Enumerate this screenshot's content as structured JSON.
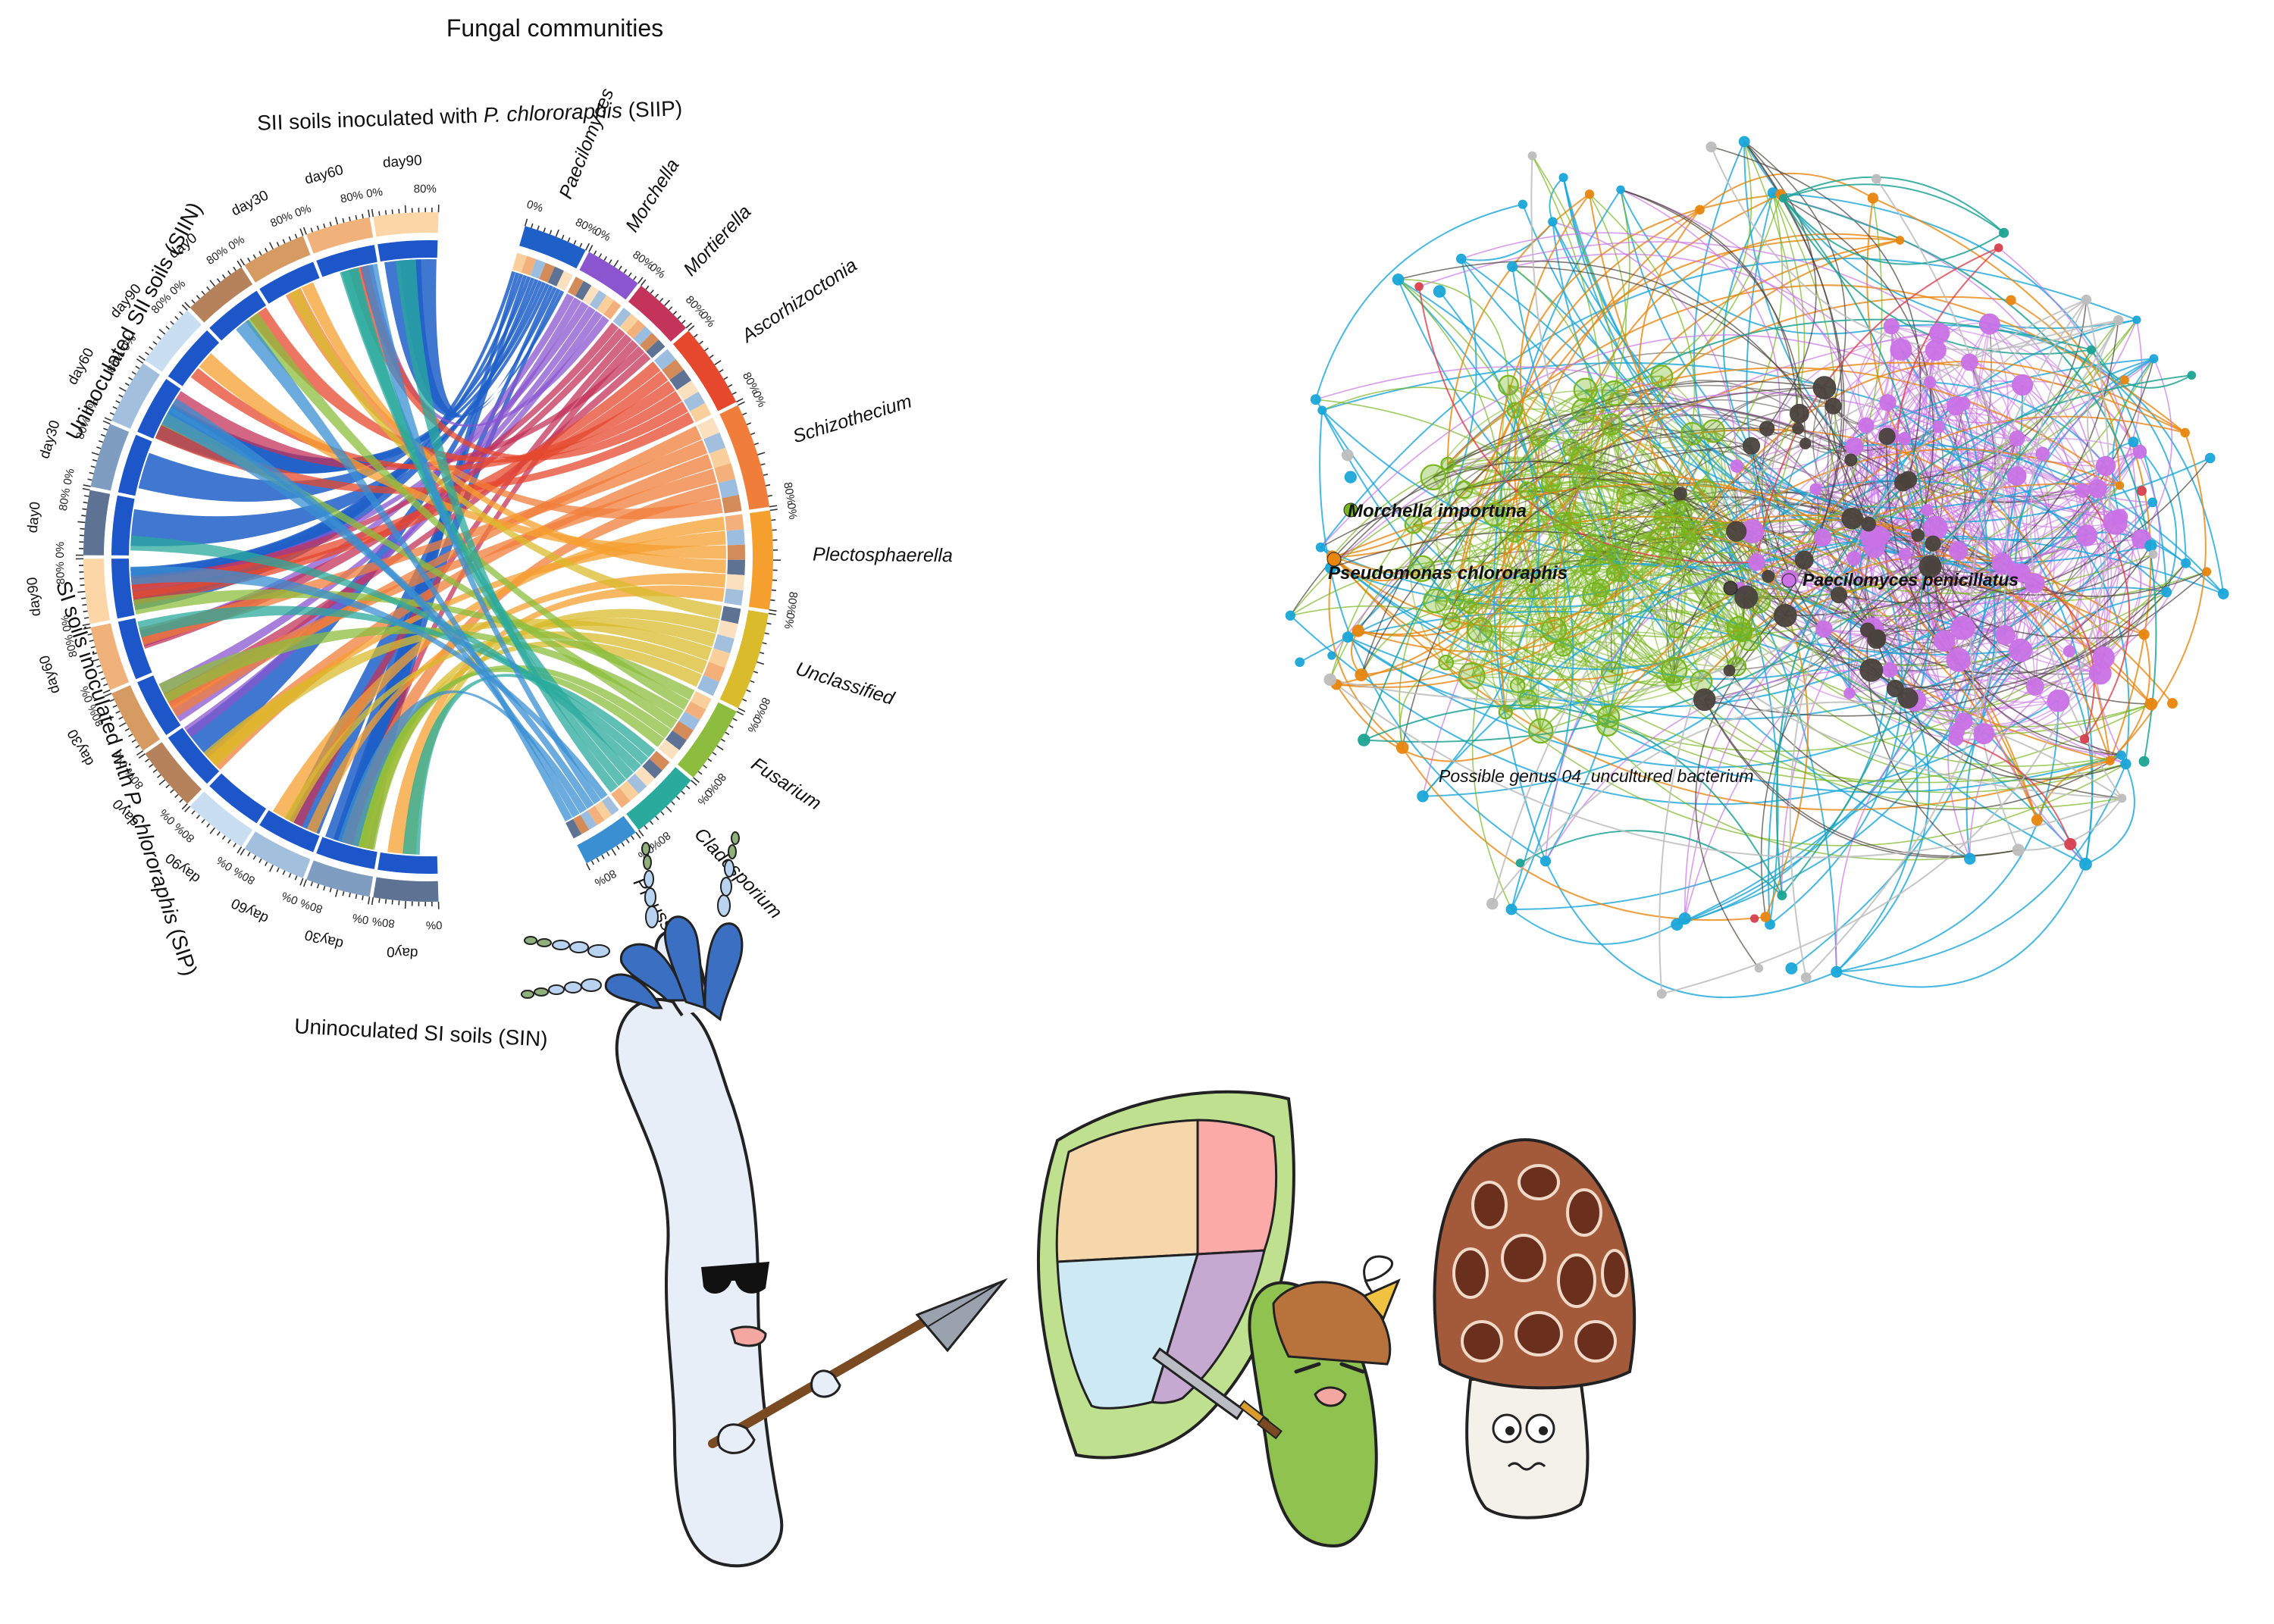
{
  "chord": {
    "title": "Fungal communities",
    "groups": [
      {
        "id": "siip",
        "label_parts": [
          "SII soils inoculated with ",
          "P. chlororaphis",
          " (SIIP)"
        ],
        "arc_color": "#f2a35c"
      },
      {
        "id": "siin",
        "label": "Uninoculated SII soils (SIIN)",
        "arc_color": "#6f8fb4"
      },
      {
        "id": "sip",
        "label_parts": [
          "SI soils inoculated with ",
          "P. chlororaphis",
          " (SIP)"
        ],
        "arc_color": "#f2a35c"
      },
      {
        "id": "sin",
        "label": "Uninoculated SI soils (SIN)",
        "arc_color": "#6f8fb4"
      }
    ],
    "samples": [
      {
        "group": "siip",
        "day": "day0",
        "color": "#b5825c"
      },
      {
        "group": "siip",
        "day": "day30",
        "color": "#d69a63"
      },
      {
        "group": "siip",
        "day": "day60",
        "color": "#f0b27a"
      },
      {
        "group": "siip",
        "day": "day90",
        "color": "#fcd6a6"
      },
      {
        "group": "siin",
        "day": "day0",
        "color": "#5e7394"
      },
      {
        "group": "siin",
        "day": "day30",
        "color": "#7f9dc1"
      },
      {
        "group": "siin",
        "day": "day60",
        "color": "#a2c0de"
      },
      {
        "group": "siin",
        "day": "day90",
        "color": "#c9def0"
      },
      {
        "group": "sip",
        "day": "day0",
        "color": "#b5825c"
      },
      {
        "group": "sip",
        "day": "day30",
        "color": "#d69a63"
      },
      {
        "group": "sip",
        "day": "day60",
        "color": "#f0b27a"
      },
      {
        "group": "sip",
        "day": "day90",
        "color": "#fcd6a6"
      },
      {
        "group": "sin",
        "day": "day0",
        "color": "#5e7394"
      },
      {
        "group": "sin",
        "day": "day30",
        "color": "#7f9dc1"
      },
      {
        "group": "sin",
        "day": "day60",
        "color": "#a2c0de"
      },
      {
        "group": "sin",
        "day": "day90",
        "color": "#c9def0"
      }
    ],
    "tick_labels": [
      "0%",
      "80%"
    ],
    "genera": [
      {
        "name": "Paecilomyces",
        "color": "#1f5fc8"
      },
      {
        "name": "Morchella",
        "color": "#8a55cf"
      },
      {
        "name": "Mortierella",
        "color": "#c3335a"
      },
      {
        "name": "Ascorhizoctonia",
        "color": "#e6482d"
      },
      {
        "name": "Schizothecium",
        "color": "#f07d3a"
      },
      {
        "name": "Plectosphaerella",
        "color": "#f59f2f"
      },
      {
        "name": "Unclassified",
        "color": "#d9bb2c"
      },
      {
        "name": "Fusarium",
        "color": "#8cbd3e"
      },
      {
        "name": "Cladosporium",
        "color": "#2aaa9c"
      },
      {
        "name": "Preussia",
        "color": "#3a8fd2"
      }
    ]
  },
  "network": {
    "labels": {
      "morchella": "Morchella importuna",
      "pseudomonas": "Pseudomonas chlororaphis",
      "paecilomyces": "Paecilomyces penicillatus",
      "possible": "Possible genus 04_uncultured bacterium"
    },
    "module_colors": {
      "green": "#76b51c",
      "violet": "#c972e6",
      "dark": "#4a423d",
      "cyan": "#1aa6d9",
      "orange": "#e8860f",
      "teal": "#1ea394",
      "grey": "#bdbdbd",
      "red": "#d8404e"
    }
  },
  "illustration": {
    "characters": [
      "paecilomyces-character",
      "pseudomonas-character",
      "morchella-character"
    ],
    "shield_colors": [
      "#f6d7ab",
      "#fbaaa8",
      "#cde9f4",
      "#c5a9d0"
    ]
  }
}
